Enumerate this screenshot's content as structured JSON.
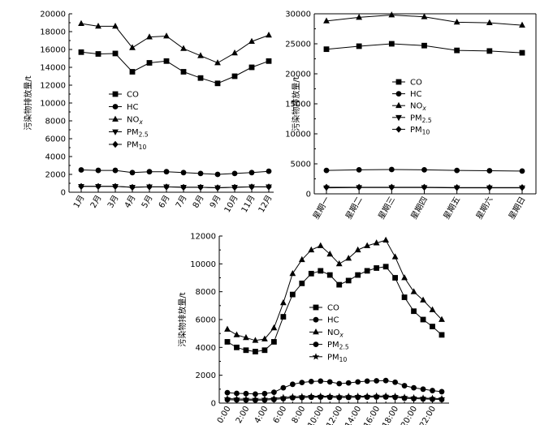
{
  "chart_data": [
    {
      "type": "line",
      "ylabel": "污染物排放量/t",
      "categories": [
        "1月",
        "2月",
        "3月",
        "4月",
        "5月",
        "6月",
        "7月",
        "8月",
        "9月",
        "10月",
        "11月",
        "12月"
      ],
      "ylim": [
        0,
        20000
      ],
      "yticks": [
        "0",
        "2000",
        "4000",
        "6000",
        "8000",
        "10000",
        "12000",
        "14000",
        "16000",
        "18000",
        "20000"
      ],
      "legend": {
        "labels": [
          "CO",
          "HC",
          "NO",
          "PM",
          "PM"
        ],
        "subscripts": [
          "",
          "",
          "x",
          "2.5",
          "10"
        ]
      },
      "series": [
        {
          "name": "CO",
          "marker": "square",
          "values": [
            15700,
            15500,
            15550,
            13500,
            14500,
            14700,
            13500,
            12800,
            12200,
            13000,
            14000,
            14700
          ]
        },
        {
          "name": "HC",
          "marker": "circle",
          "values": [
            2500,
            2450,
            2450,
            2200,
            2300,
            2300,
            2200,
            2100,
            2000,
            2100,
            2200,
            2350
          ]
        },
        {
          "name": "NOx",
          "marker": "triangle-up",
          "values": [
            18900,
            18600,
            18600,
            16200,
            17400,
            17500,
            16100,
            15300,
            14500,
            15600,
            16900,
            17600
          ]
        },
        {
          "name": "PM2.5",
          "marker": "triangle-down",
          "values": [
            650,
            650,
            650,
            550,
            600,
            600,
            550,
            550,
            500,
            550,
            600,
            600
          ]
        },
        {
          "name": "PM10",
          "marker": "diamond",
          "values": [
            650,
            650,
            650,
            550,
            600,
            600,
            550,
            550,
            500,
            550,
            600,
            600
          ]
        }
      ]
    },
    {
      "type": "line",
      "ylabel": "污染物排放量/t",
      "categories": [
        "星期一",
        "星期二",
        "星期三",
        "星期四",
        "星期五",
        "星期六",
        "星期日"
      ],
      "ylim": [
        0,
        30000
      ],
      "yticks": [
        "0",
        "5000",
        "10000",
        "15000",
        "20000",
        "25000",
        "30000"
      ],
      "legend": {
        "labels": [
          "CO",
          "HC",
          "NO",
          "PM",
          "PM"
        ],
        "subscripts": [
          "",
          "",
          "x",
          "2.5",
          "10"
        ]
      },
      "series": [
        {
          "name": "CO",
          "marker": "square",
          "values": [
            24100,
            24600,
            25000,
            24700,
            23900,
            23800,
            23500
          ]
        },
        {
          "name": "HC",
          "marker": "circle",
          "values": [
            3900,
            4000,
            4050,
            4000,
            3900,
            3850,
            3800
          ]
        },
        {
          "name": "NOx",
          "marker": "triangle-up",
          "values": [
            28800,
            29400,
            29800,
            29500,
            28600,
            28500,
            28100
          ]
        },
        {
          "name": "PM2.5",
          "marker": "triangle-down",
          "values": [
            1000,
            1050,
            1050,
            1050,
            1000,
            1000,
            1000
          ]
        },
        {
          "name": "PM10",
          "marker": "diamond",
          "values": [
            1100,
            1100,
            1100,
            1100,
            1050,
            1050,
            1050
          ]
        }
      ]
    },
    {
      "type": "line",
      "ylabel": "污染物排放量/t",
      "categories": [
        "0:00",
        "2:00",
        "4:00",
        "6:00",
        "8:00",
        "10:00",
        "12:00",
        "14:00",
        "16:00",
        "18:00",
        "20:00",
        "22:00"
      ],
      "x": [
        0,
        1,
        2,
        3,
        4,
        5,
        6,
        7,
        8,
        9,
        10,
        11,
        12,
        13,
        14,
        15,
        16,
        17,
        18,
        19,
        20,
        21,
        22,
        23
      ],
      "ylim": [
        0,
        12000
      ],
      "yticks": [
        "0",
        "2000",
        "4000",
        "6000",
        "8000",
        "10000",
        "12000"
      ],
      "legend": {
        "labels": [
          "CO",
          "HC",
          "NO",
          "PM",
          "PM"
        ],
        "subscripts": [
          "",
          "",
          "x",
          "2.5",
          "10"
        ]
      },
      "series": [
        {
          "name": "CO",
          "marker": "square",
          "values": [
            4400,
            4000,
            3800,
            3700,
            3800,
            4400,
            6200,
            7800,
            8600,
            9300,
            9500,
            9200,
            8500,
            8800,
            9200,
            9500,
            9700,
            9800,
            9000,
            7600,
            6600,
            6000,
            5500,
            4900
          ]
        },
        {
          "name": "HC",
          "marker": "circle",
          "values": [
            750,
            700,
            680,
            650,
            680,
            780,
            1100,
            1350,
            1480,
            1550,
            1580,
            1520,
            1400,
            1450,
            1520,
            1580,
            1600,
            1620,
            1500,
            1250,
            1100,
            1000,
            900,
            820
          ]
        },
        {
          "name": "NOx",
          "marker": "triangle-up",
          "values": [
            5300,
            4900,
            4700,
            4500,
            4600,
            5400,
            7200,
            9300,
            10300,
            11000,
            11300,
            10700,
            10000,
            10400,
            11000,
            11300,
            11500,
            11700,
            10500,
            9000,
            8000,
            7400,
            6700,
            6000
          ]
        },
        {
          "name": "PM2.5",
          "marker": "circle",
          "values": [
            250,
            230,
            220,
            210,
            220,
            260,
            320,
            380,
            400,
            420,
            430,
            420,
            400,
            410,
            420,
            430,
            440,
            440,
            420,
            350,
            320,
            300,
            280,
            260
          ]
        },
        {
          "name": "PM10",
          "marker": "star",
          "values": [
            320,
            300,
            290,
            280,
            290,
            330,
            400,
            450,
            470,
            490,
            500,
            490,
            470,
            480,
            490,
            500,
            510,
            510,
            490,
            420,
            380,
            360,
            340,
            320
          ]
        }
      ]
    }
  ]
}
